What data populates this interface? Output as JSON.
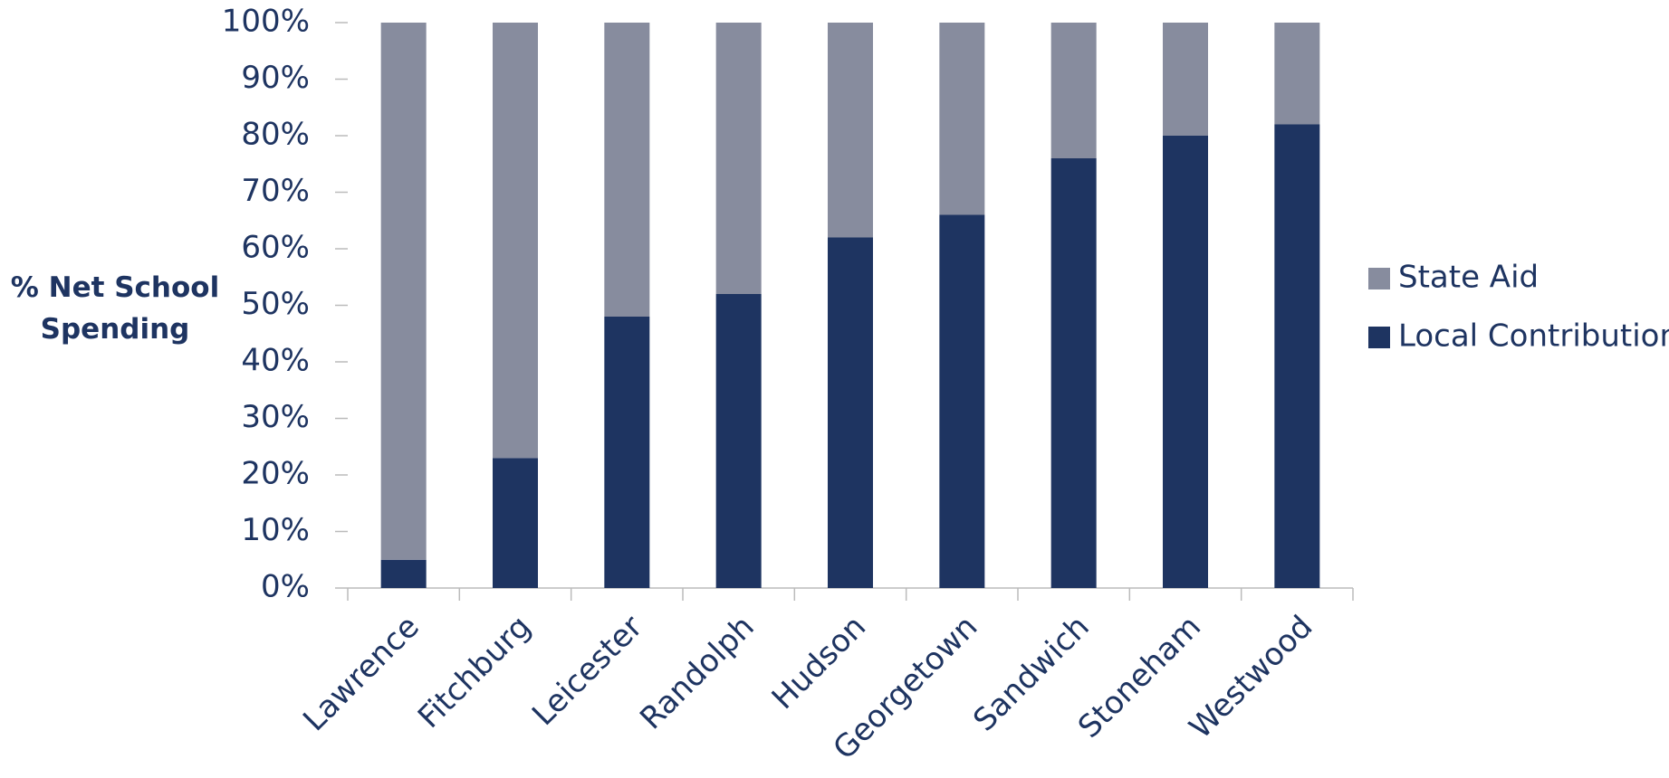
{
  "chart_data": {
    "type": "stacked_bar",
    "y_label": "% Net School Spending",
    "categories": [
      "Lawrence",
      "Fitchburg",
      "Leicester",
      "Randolph",
      "Hudson",
      "Georgetown",
      "Sandwich",
      "Stoneham",
      "Westwood"
    ],
    "series": [
      {
        "name": "Local Contribution",
        "color": "#1e3461",
        "values": [
          5,
          23,
          48,
          52,
          62,
          66,
          76,
          80,
          82
        ]
      },
      {
        "name": "State Aid",
        "color": "#878c9e",
        "values": [
          95,
          77,
          52,
          48,
          38,
          34,
          24,
          20,
          18
        ]
      }
    ],
    "ylim": [
      0,
      100
    ],
    "yticks": [
      {
        "value": 0,
        "label": "0%"
      },
      {
        "value": 10,
        "label": "10%"
      },
      {
        "value": 20,
        "label": "20%"
      },
      {
        "value": 30,
        "label": "30%"
      },
      {
        "value": 40,
        "label": "40%"
      },
      {
        "value": 50,
        "label": "50%"
      },
      {
        "value": 60,
        "label": "60%"
      },
      {
        "value": 70,
        "label": "70%"
      },
      {
        "value": 80,
        "label": "80%"
      },
      {
        "value": 90,
        "label": "90%"
      },
      {
        "value": 100,
        "label": "100%"
      }
    ],
    "legend": "right"
  }
}
